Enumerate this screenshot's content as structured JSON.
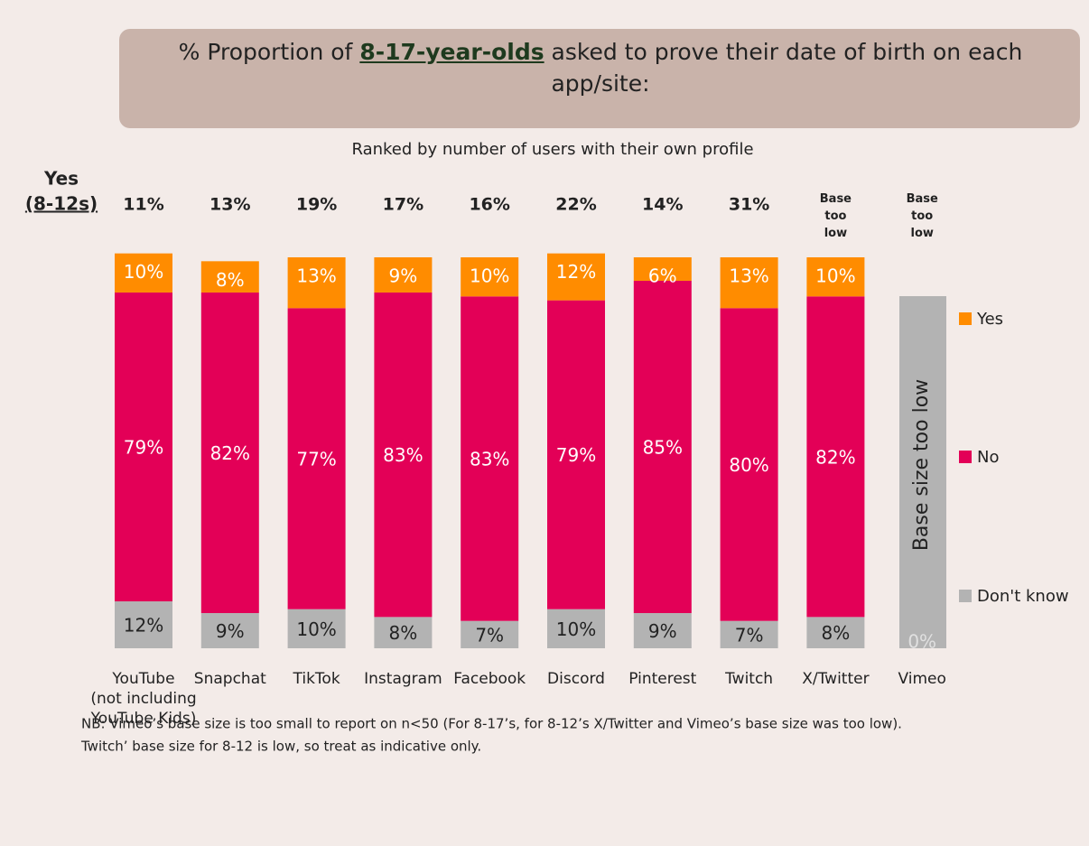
{
  "chart_data": {
    "type": "stacked_bar",
    "title_prefix": "% Proportion of ",
    "title_highlight": "8-17-year-olds",
    "title_suffix": " asked to prove their date of birth on each app/site:",
    "subtitle": "Ranked by number of users with their own profile",
    "categories": [
      "YouTube\n(not including\nYouTube Kids)",
      "Snapchat",
      "TikTok",
      "Instagram",
      "Facebook",
      "Discord",
      "Pinterest",
      "Twitch",
      "X/Twitter",
      "Vimeo"
    ],
    "ylim": [
      0,
      100
    ],
    "series": [
      {
        "name": "Don't know",
        "color": "#b3b3b3",
        "values": [
          12,
          9,
          10,
          8,
          7,
          10,
          9,
          7,
          8,
          0
        ],
        "value_labels": [
          "12%",
          "9%",
          "10%",
          "8%",
          "7%",
          "10%",
          "9%",
          "7%",
          "8%",
          "0%"
        ]
      },
      {
        "name": "No",
        "color": "#e30057",
        "values": [
          79,
          82,
          77,
          83,
          83,
          79,
          85,
          80,
          82,
          null
        ],
        "value_labels": [
          "79%",
          "82%",
          "77%",
          "83%",
          "83%",
          "79%",
          "85%",
          "80%",
          "82%",
          null
        ]
      },
      {
        "name": "Yes",
        "color": "#ff8c00",
        "values": [
          10,
          8,
          13,
          9,
          10,
          12,
          6,
          13,
          10,
          null
        ],
        "value_labels": [
          "10%",
          "8%",
          "13%",
          "9%",
          "10%",
          "12%",
          "6%",
          "13%",
          "10%",
          null
        ]
      }
    ],
    "yes_8_12": {
      "title": "Yes",
      "subtitle": "(8-12s)",
      "values": [
        11,
        13,
        19,
        17,
        16,
        22,
        14,
        31,
        null,
        null
      ],
      "value_labels": [
        "11%",
        "13%",
        "19%",
        "17%",
        "16%",
        "22%",
        "14%",
        "31%",
        "Base\ntoo\nlow",
        "Base\ntoo\nlow"
      ]
    },
    "base_annotation": "Base size too low",
    "note": [
      "NB: Vimeo’s base size is too small to report on n<50 (For 8-17’s, for 8-12’s  X/Twitter and Vimeo’s base size was too low).",
      "Twitch’ base size for 8-12 is low, so treat as indicative only."
    ]
  }
}
